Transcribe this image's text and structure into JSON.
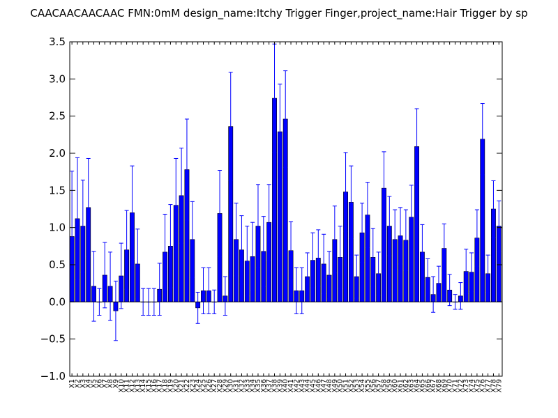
{
  "chart_data": {
    "type": "bar",
    "title": "CAACAACAACAAC  FMN:0mM  design_name:Itchy Trigger Finger,project_name:Hair Trigger by sp",
    "ylim": [
      -1.0,
      3.5
    ],
    "yticks": [
      -1.0,
      -0.5,
      0.0,
      0.5,
      1.0,
      1.5,
      2.0,
      2.5,
      3.0,
      3.5
    ],
    "ytick_labels": [
      "−1.0",
      "−0.5",
      "0.0",
      "0.5",
      "1.0",
      "1.5",
      "2.0",
      "2.5",
      "3.0",
      "3.5"
    ],
    "bar_color": "#0000ff",
    "error_color": "#0000ff",
    "categories": [
      "X1",
      "X2",
      "X3",
      "X4",
      "X5",
      "X6",
      "X7",
      "X8",
      "X9",
      "X10",
      "X11",
      "X12",
      "X13",
      "X14",
      "X15",
      "X16",
      "X17",
      "X18",
      "X19",
      "X20",
      "X21",
      "X22",
      "X23",
      "X24",
      "X25",
      "X26",
      "X27",
      "X28",
      "X29",
      "X30",
      "X31",
      "X32",
      "X33",
      "X34",
      "X35",
      "X36",
      "X37",
      "X38",
      "X39",
      "X40",
      "X41",
      "X42",
      "X43",
      "X44",
      "X45",
      "X46",
      "X47",
      "X48",
      "X49",
      "X50",
      "X51",
      "X52",
      "X53",
      "X54",
      "X55",
      "X56",
      "X57",
      "X58",
      "X59",
      "X60",
      "X61",
      "X62",
      "X63",
      "X64",
      "X65",
      "X66",
      "X67",
      "X68",
      "X69",
      "X70",
      "X71",
      "X72",
      "X73",
      "X74",
      "X75",
      "X76",
      "X77",
      "X78",
      "X79"
    ],
    "values": [
      0.88,
      1.12,
      1.02,
      1.27,
      0.21,
      0.0,
      0.36,
      0.21,
      -0.12,
      0.35,
      0.7,
      1.2,
      0.51,
      0.0,
      0.0,
      0.0,
      0.17,
      0.67,
      0.75,
      1.3,
      1.43,
      1.78,
      0.84,
      -0.08,
      0.15,
      0.15,
      0.0,
      1.19,
      0.08,
      2.36,
      0.84,
      0.7,
      0.55,
      0.61,
      1.02,
      0.68,
      1.07,
      2.74,
      2.29,
      2.46,
      0.69,
      0.15,
      0.15,
      0.34,
      0.56,
      0.59,
      0.51,
      0.36,
      0.84,
      0.6,
      1.48,
      1.34,
      0.34,
      0.93,
      1.17,
      0.6,
      0.38,
      1.53,
      1.02,
      0.84,
      0.89,
      0.83,
      1.14,
      2.09,
      0.67,
      0.33,
      0.1,
      0.25,
      0.72,
      0.16,
      0.0,
      0.08,
      0.41,
      0.4,
      0.86,
      2.19,
      0.38,
      1.25,
      1.02
    ],
    "errors": [
      0.88,
      0.82,
      0.62,
      0.66,
      0.47,
      0.18,
      0.44,
      0.46,
      0.4,
      0.44,
      0.53,
      0.63,
      0.47,
      0.18,
      0.18,
      0.18,
      0.35,
      0.51,
      0.56,
      0.63,
      0.64,
      0.68,
      0.51,
      0.21,
      0.31,
      0.31,
      0.16,
      0.58,
      0.26,
      0.73,
      0.49,
      0.46,
      0.47,
      0.46,
      0.56,
      0.47,
      0.51,
      0.73,
      0.64,
      0.65,
      0.39,
      0.31,
      0.31,
      0.32,
      0.37,
      0.38,
      0.4,
      0.32,
      0.45,
      0.42,
      0.53,
      0.49,
      0.29,
      0.4,
      0.44,
      0.39,
      0.29,
      0.49,
      0.4,
      0.4,
      0.38,
      0.41,
      0.43,
      0.51,
      0.37,
      0.25,
      0.24,
      0.23,
      0.33,
      0.21,
      0.1,
      0.18,
      0.3,
      0.26,
      0.38,
      0.48,
      0.25,
      0.38,
      0.34
    ]
  }
}
